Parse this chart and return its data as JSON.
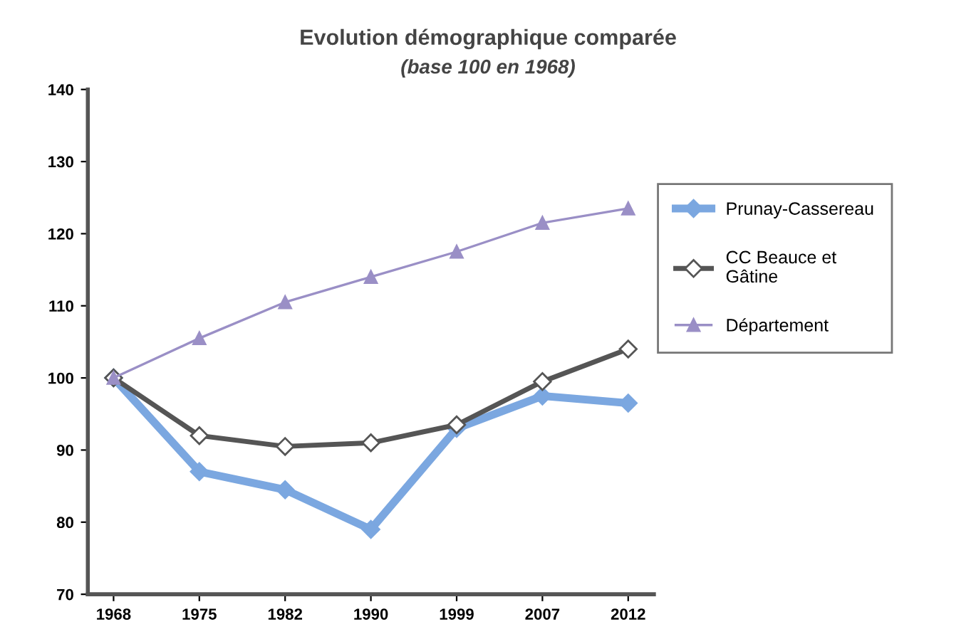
{
  "chart_data": {
    "type": "line",
    "title": "Evolution démographique comparée",
    "subtitle": "(base 100 en 1968)",
    "categories": [
      "1968",
      "1975",
      "1982",
      "1990",
      "1999",
      "2007",
      "2012"
    ],
    "series": [
      {
        "name": "Prunay-Cassereau",
        "color": "#7ba7e0",
        "marker": "diamond",
        "values": [
          100,
          87,
          84.5,
          79,
          93,
          97.5,
          96.5
        ]
      },
      {
        "name": "CC Beauce et\nGâtine",
        "color": "#555555",
        "marker": "diamond",
        "values": [
          100,
          92,
          90.5,
          91,
          93.5,
          99.5,
          104
        ]
      },
      {
        "name": "Département",
        "color": "#9a8fc6",
        "marker": "triangle",
        "values": [
          100,
          105.5,
          110.5,
          114,
          117.5,
          121.5,
          123.5
        ]
      }
    ],
    "ylim": [
      70,
      140
    ],
    "yticks": [
      70,
      80,
      90,
      100,
      110,
      120,
      130,
      140
    ],
    "grid": false,
    "legend": "right"
  }
}
